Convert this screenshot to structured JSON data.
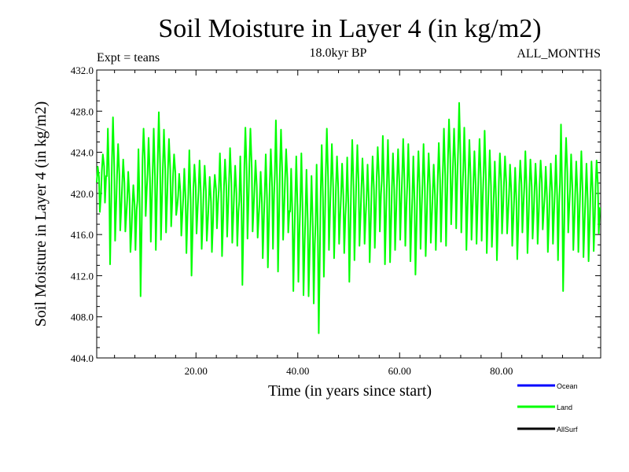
{
  "chart_data": {
    "type": "line",
    "title": "Soil Moisture in Layer 4 (in kg/m2)",
    "subtitle": "18.0kyr BP",
    "left_label": "Expt = teans",
    "right_label": "ALL_MONTHS",
    "xlabel": "Time (in years since start)",
    "ylabel": "Soil Moisture in Layer 4 (in kg/m2)",
    "xlim": [
      0.5,
      99.5
    ],
    "ylim": [
      404.0,
      432.0
    ],
    "x_ticks": [
      20,
      40,
      60,
      80
    ],
    "x_tick_labels": [
      "20.00",
      "40.00",
      "60.00",
      "80.00"
    ],
    "y_ticks": [
      404,
      408,
      412,
      416,
      420,
      424,
      428,
      432
    ],
    "y_tick_labels": [
      "404.0",
      "408.0",
      "412.0",
      "416.0",
      "420.0",
      "424.0",
      "428.0",
      "432.0"
    ],
    "legend": [
      {
        "name": "Ocean",
        "color": "#0000ff"
      },
      {
        "name": "Land",
        "color": "#00ff00"
      },
      {
        "name": "AllSurf",
        "color": "#000000"
      }
    ],
    "series": [
      {
        "name": "Land",
        "color": "#00ff00",
        "x_start": 0.5,
        "x_step": 0.1,
        "annual_max": [
          422.6,
          423.8,
          426.3,
          427.4,
          424.8,
          423.3,
          422.1,
          420.8,
          424.3,
          426.3,
          425.4,
          426.3,
          427.9,
          426.2,
          425.3,
          423.8,
          421.9,
          422.4,
          424.2,
          422.8,
          423.2,
          422.7,
          421.6,
          421.8,
          423.9,
          423.3,
          424.4,
          422.7,
          423.6,
          426.4,
          426.3,
          423.2,
          422.1,
          423.8,
          424.3,
          427.1,
          426.2,
          424.3,
          422.4,
          423.6,
          423.9,
          422.3,
          421.7,
          422.8,
          424.7,
          426.3,
          424.8,
          423.6,
          422.9,
          423.5,
          425.2,
          424.7,
          423.4,
          422.8,
          423.6,
          424.5,
          425.6,
          425.2,
          423.9,
          424.3,
          425.3,
          424.8,
          423.6,
          424.1,
          424.8,
          423.9,
          422.8,
          424.9,
          426.3,
          427.2,
          426.3,
          428.8,
          426.4,
          425.2,
          424.1,
          425.3,
          426.1,
          424.2,
          423.1,
          423.9,
          423.6,
          422.8,
          422.5,
          423.2,
          424.1,
          423.3,
          422.9,
          423.2,
          422.6,
          422.9,
          423.7,
          426.7,
          425.4,
          423.8,
          423.1,
          424.1,
          422.9,
          423.1,
          423.2
        ],
        "annual_min": [
          418.2,
          419.1,
          413.1,
          415.4,
          416.4,
          416.3,
          414.3,
          414.5,
          410.0,
          417.8,
          415.3,
          414.5,
          415.5,
          416.2,
          416.8,
          417.9,
          415.9,
          414.2,
          412.0,
          416.1,
          414.6,
          415.4,
          414.3,
          416.6,
          413.9,
          415.8,
          415.2,
          414.9,
          411.1,
          415.6,
          416.3,
          415.7,
          413.7,
          412.8,
          414.6,
          412.4,
          415.5,
          416.2,
          410.5,
          411.4,
          410.1,
          410.0,
          409.3,
          406.4,
          411.9,
          414.5,
          413.7,
          415.1,
          414.2,
          411.4,
          413.5,
          414.9,
          415.1,
          413.3,
          414.7,
          416.3,
          413.1,
          413.3,
          414.5,
          415.5,
          414.9,
          413.4,
          412.1,
          414.6,
          413.9,
          415.2,
          414.5,
          415.3,
          414.9,
          417.0,
          416.6,
          416.2,
          414.5,
          415.5,
          415.1,
          415.4,
          414.2,
          414.8,
          413.5,
          416.1,
          416.1,
          414.9,
          413.6,
          416.2,
          414.2,
          415.6,
          415.1,
          416.5,
          414.3,
          415.1,
          413.5,
          410.5,
          416.2,
          414.5,
          414.3,
          413.8,
          413.4,
          414.4,
          416.1
        ]
      }
    ]
  }
}
